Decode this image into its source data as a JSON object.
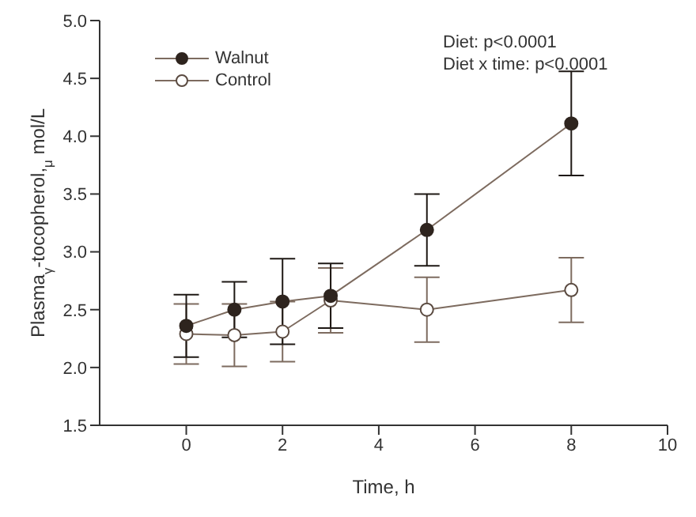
{
  "chart_data": {
    "type": "line",
    "xlabel": "Time, h",
    "ylabel": "Plasma$_{γ}$-tocopherol,$_{μ}$ mol/L",
    "x": [
      0,
      1,
      2,
      3,
      5,
      8
    ],
    "series": [
      {
        "name": "Walnut",
        "color": "#2e241e",
        "values": [
          2.36,
          2.5,
          2.57,
          2.62,
          3.19,
          4.11
        ],
        "errors": [
          0.27,
          0.24,
          0.37,
          0.28,
          0.31,
          0.45
        ]
      },
      {
        "name": "Control",
        "color": "#5a4a40",
        "values": [
          2.29,
          2.28,
          2.31,
          2.58,
          2.5,
          2.67
        ],
        "errors": [
          0.26,
          0.27,
          0.26,
          0.28,
          0.28,
          0.28
        ]
      }
    ],
    "xlim": [
      -1.8,
      10
    ],
    "xticks": [
      0,
      2,
      4,
      6,
      8,
      10
    ],
    "ylim": [
      1.5,
      5
    ],
    "yticks": [
      1.5,
      {
        "value": 2,
        "label": "2.0"
      },
      2.5,
      {
        "value": 3,
        "label": "3.0"
      },
      3.5,
      {
        "value": 4,
        "label": "4.0"
      },
      4.5,
      {
        "value": 5,
        "label": "5.0"
      }
    ],
    "legend": "top left",
    "marker": "circle",
    "grid": false,
    "annotations": [
      "Diet: p<0.0001",
      "Diet x time: p<0.0001"
    ]
  }
}
